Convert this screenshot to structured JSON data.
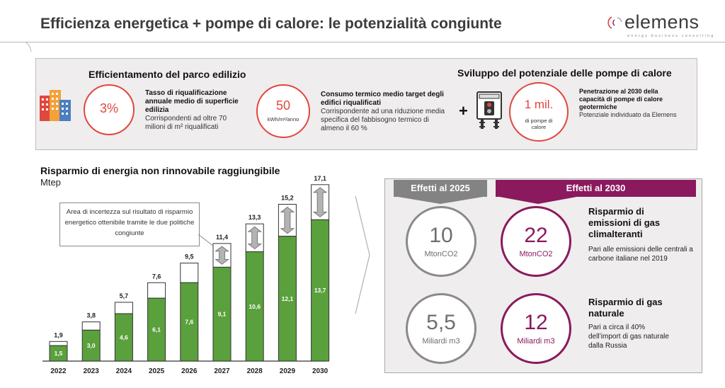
{
  "title": "Efficienza energetica + pompe di calore: le potenzialità congiunte",
  "logo": {
    "text": "elemens",
    "tagline": "energy business consulting"
  },
  "top": {
    "left_title": "Efficientamento del parco edilizio",
    "right_title": "Sviluppo del potenziale delle pompe di calore",
    "plus": "+",
    "kpi1": {
      "value": "3%",
      "head": "Tasso di riqualificazione annuale medio di superficie edilizia",
      "body": "Corrispondenti ad oltre 70 milioni di m² riqualificati"
    },
    "kpi2": {
      "value": "50",
      "unit": "kWh/m²/anno",
      "head": "Consumo termico medio target degli edifici riqualificati",
      "body": "Corrispondente ad una riduzione media specifica del fabbisogno termico di almeno il 60 %"
    },
    "kpi3": {
      "value": "1 mil.",
      "unit": "di pompe di calore",
      "head": "Penetrazione al 2030 della capacità di pompe di calore geotermiche",
      "body": "Potenziale individuato da Elemens"
    }
  },
  "chart_title": "Risparmio di energia non rinnovabile raggiungibile",
  "chart_unit": "Mtep",
  "callout": "Area di incertezza sul risultato di risparmio energetico ottenibile tramite le due politiche congiunte",
  "chart_data": {
    "type": "bar",
    "categories": [
      "2022",
      "2023",
      "2024",
      "2025",
      "2026",
      "2027",
      "2028",
      "2029",
      "2030"
    ],
    "series": [
      {
        "values": [
          1.5,
          3.0,
          4.6,
          6.1,
          7.6,
          9.1,
          10.6,
          12.1,
          13.7
        ],
        "labels": [
          "1,5",
          "3,0",
          "4,6",
          "6,1",
          "7,6",
          "9,1",
          "10,6",
          "12,1",
          "13,7"
        ],
        "color": "#5aa03c"
      },
      {
        "values": [
          1.9,
          3.8,
          5.7,
          7.6,
          9.5,
          11.4,
          13.3,
          15.2,
          17.1
        ],
        "labels": [
          "1,9",
          "3,8",
          "5,7",
          "7,6",
          "9,5",
          "11,4",
          "13,3",
          "15,2",
          "17,1"
        ],
        "color": "#ffffff"
      }
    ],
    "ylim": [
      0,
      17.5
    ],
    "grid": false,
    "arrows_from_index": 5
  },
  "effects": {
    "tab_2025": "Effetti al 2025",
    "tab_2030": "Effetti al 2030",
    "e1": {
      "v25": "10",
      "u25": "MtonCO2",
      "v30": "22",
      "u30": "MtonCO2",
      "head": "Risparmio di emissioni di gas climalteranti",
      "body": "Pari alle emissioni delle centrali a carbone italiane nel 2019"
    },
    "e2": {
      "v25": "5,5",
      "u25": "Miliardi m3",
      "v30": "12",
      "u30": "Miliardi m3",
      "head": "Risparmio di gas naturale",
      "body": "Pari a circa il 40% dell’import di gas naturale dalla Russia"
    }
  },
  "colors": {
    "accent_red": "#e0473f",
    "accent_purple": "#8b195e",
    "bar_green": "#5aa03c",
    "grey": "#838383"
  }
}
